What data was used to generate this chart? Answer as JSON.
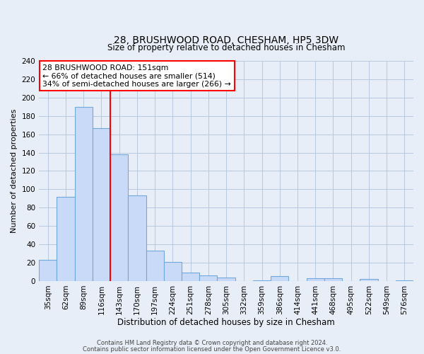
{
  "title": "28, BRUSHWOOD ROAD, CHESHAM, HP5 3DW",
  "subtitle": "Size of property relative to detached houses in Chesham",
  "xlabel": "Distribution of detached houses by size in Chesham",
  "ylabel": "Number of detached properties",
  "bar_labels": [
    "35sqm",
    "62sqm",
    "89sqm",
    "116sqm",
    "143sqm",
    "170sqm",
    "197sqm",
    "224sqm",
    "251sqm",
    "278sqm",
    "305sqm",
    "332sqm",
    "359sqm",
    "386sqm",
    "414sqm",
    "441sqm",
    "468sqm",
    "495sqm",
    "522sqm",
    "549sqm",
    "576sqm"
  ],
  "bar_values": [
    23,
    92,
    190,
    167,
    138,
    93,
    33,
    21,
    9,
    6,
    4,
    0,
    1,
    5,
    0,
    3,
    3,
    0,
    2,
    0,
    1
  ],
  "bar_color": "#c9daf8",
  "bar_edge_color": "#6fa8dc",
  "vline_x": 3.5,
  "vline_color": "red",
  "annotation_title": "28 BRUSHWOOD ROAD: 151sqm",
  "annotation_line1": "← 66% of detached houses are smaller (514)",
  "annotation_line2": "34% of semi-detached houses are larger (266) →",
  "annotation_box_color": "white",
  "annotation_box_edge": "red",
  "ylim": [
    0,
    240
  ],
  "yticks": [
    0,
    20,
    40,
    60,
    80,
    100,
    120,
    140,
    160,
    180,
    200,
    220,
    240
  ],
  "footer1": "Contains HM Land Registry data © Crown copyright and database right 2024.",
  "footer2": "Contains public sector information licensed under the Open Government Licence v3.0.",
  "bg_color": "#e8eef8",
  "grid_color": "#b8c8e0"
}
